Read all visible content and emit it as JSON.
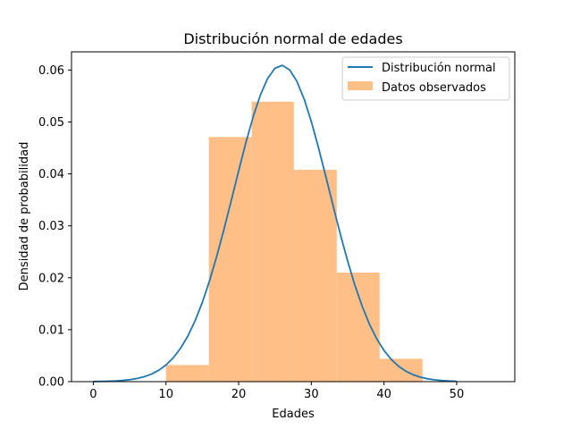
{
  "chart_data": {
    "type": "bar",
    "title": "Distribución normal de edades",
    "xlabel": "Edades",
    "ylabel": "Densidad de probabilidad",
    "xlim": [
      -3,
      58
    ],
    "ylim": [
      0,
      0.0635
    ],
    "xticks": [
      0,
      10,
      20,
      30,
      40,
      50
    ],
    "yticks": [
      0.0,
      0.01,
      0.02,
      0.03,
      0.04,
      0.05,
      0.06
    ],
    "ytick_labels": [
      "0.00",
      "0.01",
      "0.02",
      "0.03",
      "0.04",
      "0.05",
      "0.06"
    ],
    "grid": false,
    "legend_position": "upper right",
    "series": [
      {
        "name": "Distribución normal",
        "kind": "line",
        "color": "#1f77b4",
        "mean": 25.9,
        "std": 6.55,
        "x_range": [
          0,
          50
        ]
      },
      {
        "name": "Datos observados",
        "kind": "histogram",
        "color": "#ffbf86",
        "bins": [
          {
            "x0": 10.0,
            "x1": 15.9,
            "value": 0.0032
          },
          {
            "x0": 15.9,
            "x1": 21.8,
            "value": 0.0471
          },
          {
            "x0": 21.8,
            "x1": 27.6,
            "value": 0.0539
          },
          {
            "x0": 27.6,
            "x1": 33.5,
            "value": 0.0408
          },
          {
            "x0": 33.5,
            "x1": 39.4,
            "value": 0.021
          },
          {
            "x0": 39.4,
            "x1": 45.3,
            "value": 0.0044
          }
        ]
      }
    ]
  }
}
